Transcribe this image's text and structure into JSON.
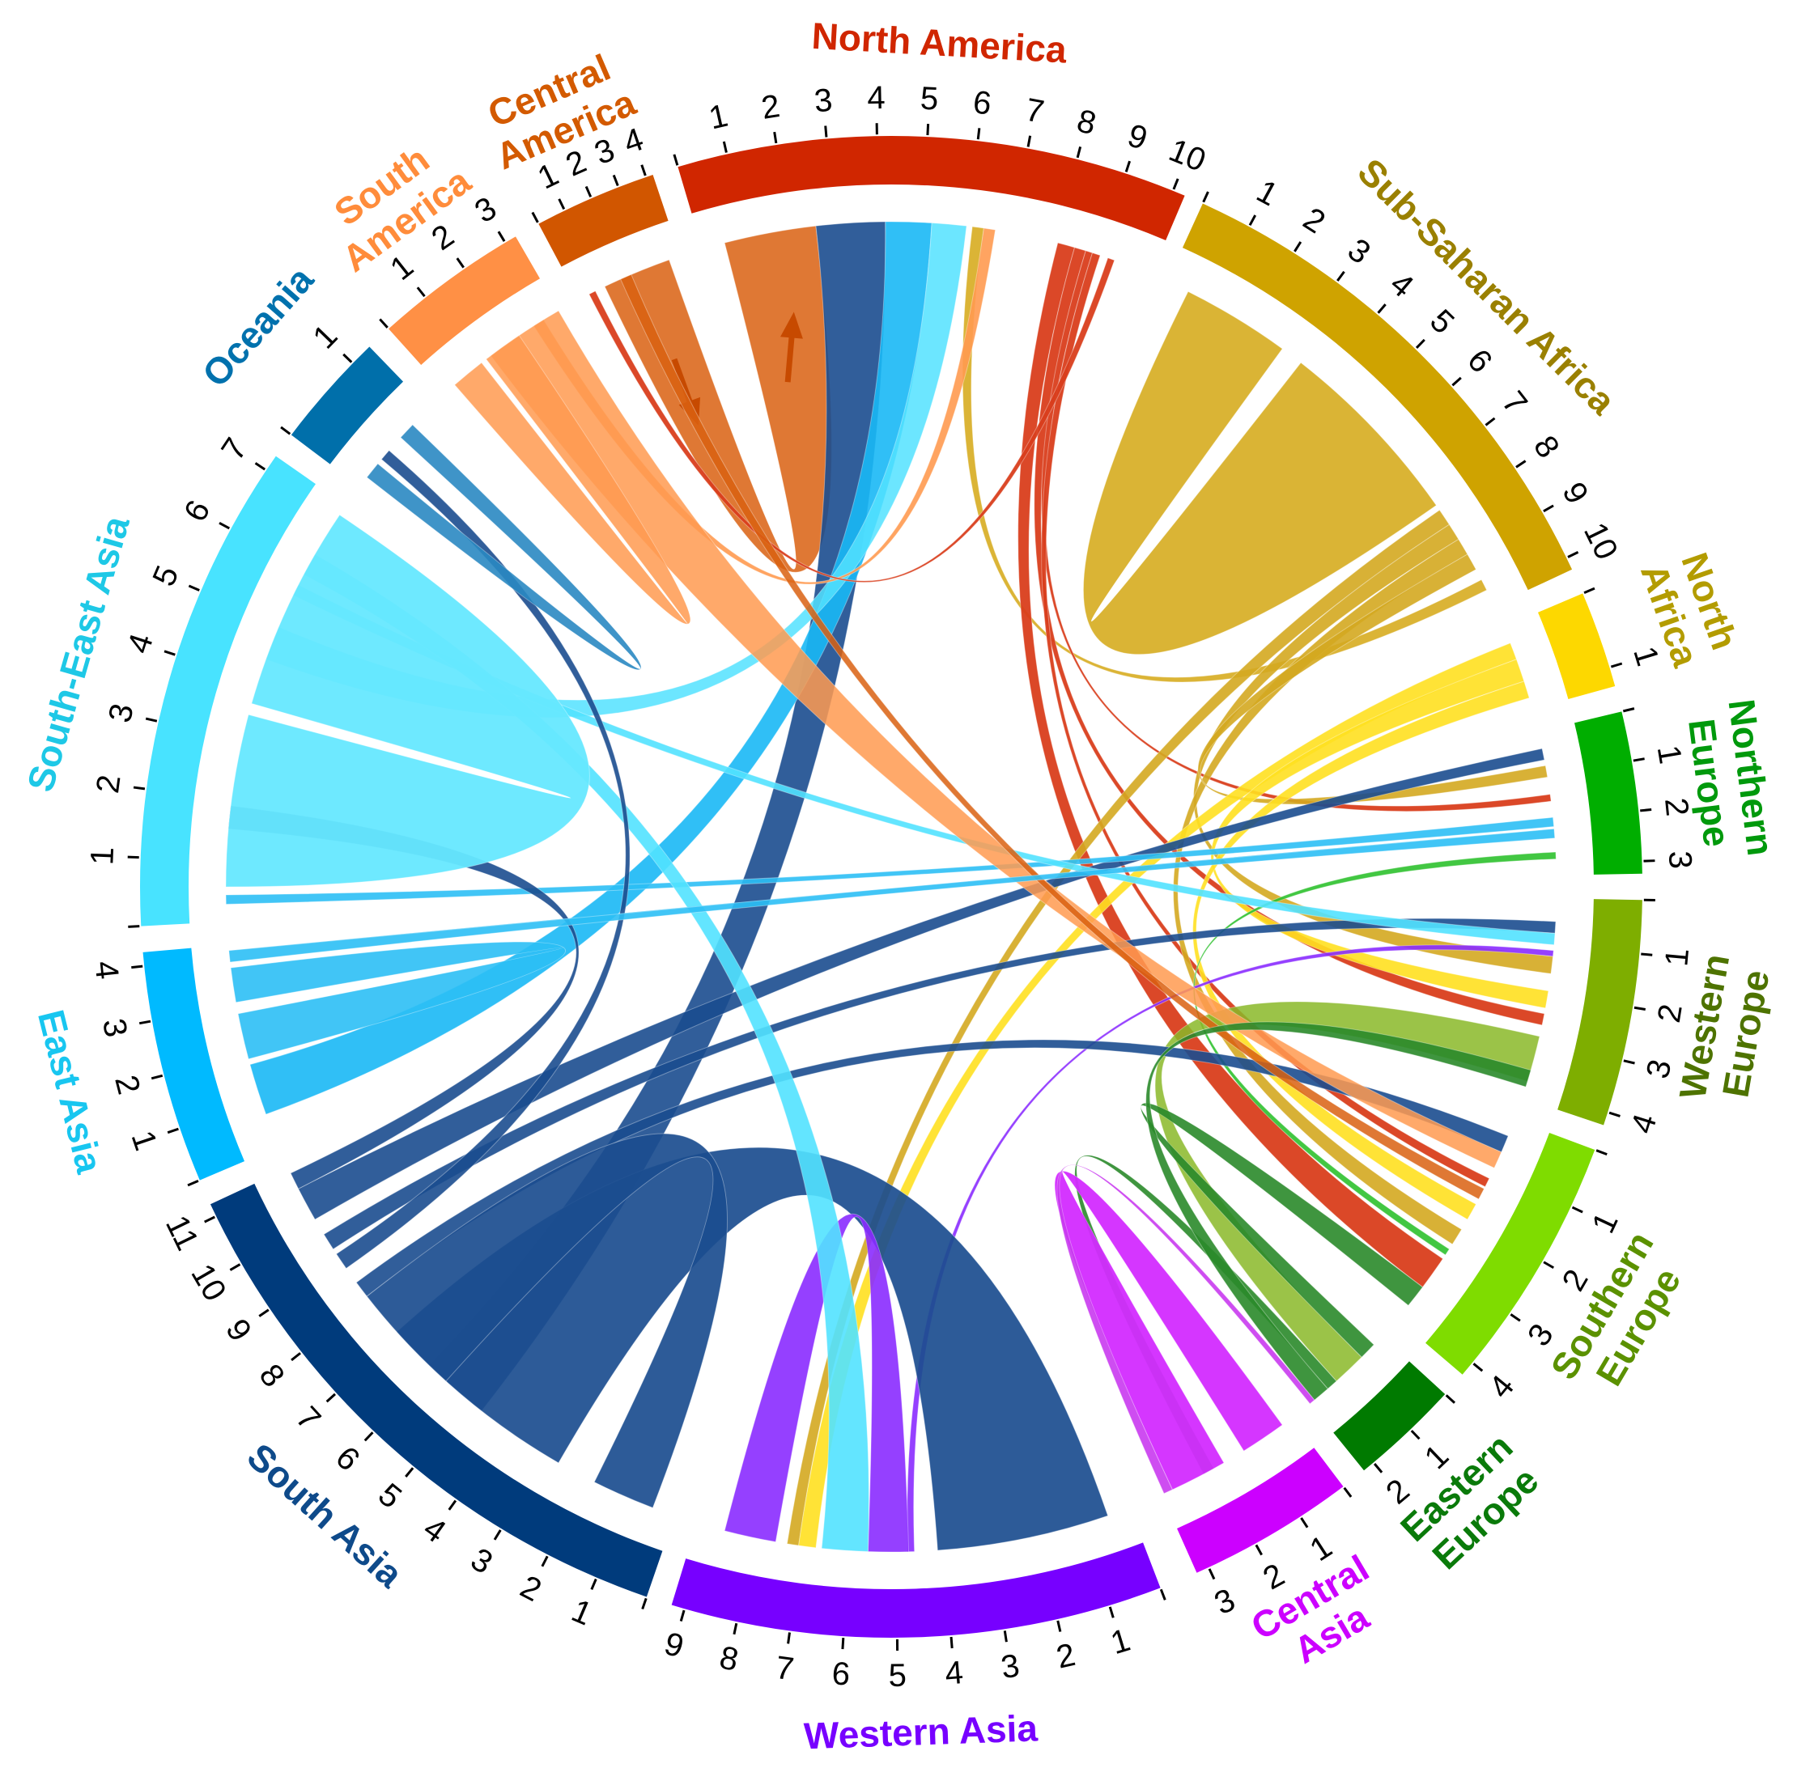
{
  "chart_data": {
    "type": "chord",
    "title": "",
    "center": [
      1101,
      1096
    ],
    "radii": {
      "outer": 928,
      "inner": 868,
      "chord": 822,
      "tick_label": 975,
      "sector_label": 1045
    },
    "sectors": [
      {
        "id": "NA",
        "name": "North America",
        "label_lines": [
          "North America"
        ],
        "color": "#D02600",
        "label_color": "#D02600",
        "start": 343.5,
        "end": 23.0,
        "ticks": 10
      },
      {
        "id": "SSA",
        "name": "Sub-Saharan Africa",
        "label_lines": [
          "Sub-Saharan Africa"
        ],
        "color": "#CFA300",
        "label_color": "#9A8000",
        "start": 24.5,
        "end": 65.0,
        "ticks": 10
      },
      {
        "id": "NAF",
        "name": "North Africa",
        "label_lines": [
          "North",
          "Africa"
        ],
        "color": "#FDD800",
        "label_color": "#B39C00",
        "start": 67.0,
        "end": 74.5,
        "ticks": 1
      },
      {
        "id": "NEU",
        "name": "Northern Europe",
        "label_lines": [
          "Northern",
          "Europe"
        ],
        "color": "#00AE00",
        "label_color": "#00990C",
        "start": 76.5,
        "end": 89.0,
        "ticks": 3
      },
      {
        "id": "WEU",
        "name": "Western Europe",
        "label_lines": [
          "Western",
          "Europe"
        ],
        "color": "#7EAE00",
        "label_color": "#4E7300",
        "start": 91.0,
        "end": 108.5,
        "ticks": 4
      },
      {
        "id": "SEU",
        "name": "Southern Europe",
        "label_lines": [
          "Southern",
          "Europe"
        ],
        "color": "#7FDC00",
        "label_color": "#5B9100",
        "start": 110.5,
        "end": 130.5,
        "ticks": 4
      },
      {
        "id": "EEU",
        "name": "Eastern Europe",
        "label_lines": [
          "Eastern",
          "Europe"
        ],
        "color": "#007A00",
        "label_color": "#0A7A0A",
        "start": 132.5,
        "end": 141.0,
        "ticks": 2
      },
      {
        "id": "CAS",
        "name": "Central Asia",
        "label_lines": [
          "Central",
          "Asia"
        ],
        "color": "#CC00FF",
        "label_color": "#CC00FF",
        "start": 143.0,
        "end": 156.0,
        "ticks": 3
      },
      {
        "id": "WAS",
        "name": "Western Asia",
        "label_lines": [
          "Western Asia"
        ],
        "color": "#7700FF",
        "label_color": "#7700FF",
        "start": 159.0,
        "end": 197.0,
        "ticks": 9
      },
      {
        "id": "SAS",
        "name": "South Asia",
        "label_lines": [
          "South Asia"
        ],
        "color": "#003B7C",
        "label_color": "#0E4A8A",
        "start": 199.0,
        "end": 245.0,
        "ticks": 11
      },
      {
        "id": "EAS",
        "name": "East Asia",
        "label_lines": [
          "East Asia"
        ],
        "color": "#00BAFF",
        "label_color": "#18C6F0",
        "start": 247.0,
        "end": 265.0,
        "ticks": 4
      },
      {
        "id": "SEA",
        "name": "South-East Asia",
        "label_lines": [
          "South-East Asia"
        ],
        "color": "#48E3FF",
        "label_color": "#1EC8E6",
        "start": 267.0,
        "end": 305.0,
        "ticks": 7
      },
      {
        "id": "OCE",
        "name": "Oceania",
        "label_lines": [
          "Oceania"
        ],
        "color": "#006FAA",
        "label_color": "#0071AD",
        "start": 307.0,
        "end": 316.0,
        "ticks": 1
      },
      {
        "id": "SAM",
        "name": "South America",
        "label_lines": [
          "South",
          "America"
        ],
        "color": "#FF9045",
        "label_color": "#FF8C3B",
        "start": 318.0,
        "end": 330.0,
        "ticks": 3
      },
      {
        "id": "CAM",
        "name": "Central America",
        "label_lines": [
          "Central",
          "America"
        ],
        "color": "#D15600",
        "label_color": "#D35A00",
        "start": 332.0,
        "end": 341.5,
        "ticks": 4
      }
    ],
    "links": [
      {
        "from": "CAM",
        "a0": 334.5,
        "a1": 340.5,
        "to": "NA",
        "b0": 345.5,
        "b1": 353.5,
        "color": "#D96010",
        "opacity": 0.85,
        "arrows": true
      },
      {
        "from": "NA",
        "a0": 353.5,
        "a1": 359.5,
        "to": "SAS",
        "b0": 218.0,
        "b1": 224.0,
        "color": "#1B4D8F",
        "opacity": 0.9
      },
      {
        "from": "NA",
        "a0": 359.5,
        "a1": 3.5,
        "to": "EAS",
        "b0": 250.0,
        "b1": 254.5,
        "color": "#1AB8F5",
        "opacity": 0.9
      },
      {
        "from": "NA",
        "a0": 3.5,
        "a1": 6.5,
        "to": "SEA",
        "b0": 290.0,
        "b1": 293.0,
        "color": "#52E2FF",
        "opacity": 0.85
      },
      {
        "from": "NA",
        "a0": 7.0,
        "a1": 8.0,
        "to": "SSA",
        "b0": 62.5,
        "b1": 63.5,
        "color": "#D7AC20",
        "opacity": 0.9
      },
      {
        "from": "NA",
        "a0": 8.0,
        "a1": 9.0,
        "to": "SAM",
        "b0": 327.5,
        "b1": 328.5,
        "color": "#FF9A50",
        "opacity": 0.9
      },
      {
        "from": "NA",
        "a0": 14.5,
        "a1": 16.0,
        "to": "SEU",
        "b0": 124.0,
        "b1": 127.0,
        "color": "#D93E1C",
        "opacity": 0.95
      },
      {
        "from": "NA",
        "a0": 16.0,
        "a1": 17.0,
        "to": "WEU",
        "b0": 101.0,
        "b1": 102.0,
        "color": "#D93E1C",
        "opacity": 0.95
      },
      {
        "from": "NA",
        "a0": 17.0,
        "a1": 17.6,
        "to": "NEU",
        "b0": 82.0,
        "b1": 82.6,
        "color": "#D93E1C",
        "opacity": 0.95
      },
      {
        "from": "NA",
        "a0": 17.6,
        "a1": 18.3,
        "to": "SEU",
        "b0": 116.0,
        "b1": 116.8,
        "color": "#D93E1C",
        "opacity": 0.95
      },
      {
        "from": "NA",
        "a0": 19.0,
        "a1": 19.6,
        "to": "CAM",
        "b0": 333.0,
        "b1": 333.6,
        "color": "#D93E1C",
        "opacity": 0.95
      },
      {
        "from": "SSA",
        "a0": 26.5,
        "a1": 36.0,
        "to": "SSA",
        "b0": 38.0,
        "b1": 55.0,
        "color": "#D8B02A",
        "opacity": 0.95
      },
      {
        "from": "SSA",
        "a0": 55.5,
        "a1": 57.0,
        "to": "WAS",
        "b0": 188.0,
        "b1": 189.0,
        "color": "#D4A820",
        "opacity": 0.9
      },
      {
        "from": "SSA",
        "a0": 57.0,
        "a1": 58.5,
        "to": "WEU",
        "b0": 96.0,
        "b1": 97.5,
        "color": "#D4A820",
        "opacity": 0.9
      },
      {
        "from": "SSA",
        "a0": 58.5,
        "a1": 60.0,
        "to": "SEU",
        "b0": 121.0,
        "b1": 122.5,
        "color": "#D4A820",
        "opacity": 0.9
      },
      {
        "from": "SSA",
        "a0": 60.0,
        "a1": 61.5,
        "to": "NEU",
        "b0": 79.5,
        "b1": 80.5,
        "color": "#D4A820",
        "opacity": 0.9
      },
      {
        "from": "NAF",
        "a0": 68.5,
        "a1": 70.0,
        "to": "WAS",
        "b0": 186.5,
        "b1": 188.0,
        "color": "#FFE020",
        "opacity": 0.9
      },
      {
        "from": "NAF",
        "a0": 70.0,
        "a1": 72.0,
        "to": "WEU",
        "b0": 99.0,
        "b1": 100.5,
        "color": "#FFE020",
        "opacity": 0.9
      },
      {
        "from": "NAF",
        "a0": 72.0,
        "a1": 73.5,
        "to": "SEU",
        "b0": 118.5,
        "b1": 120.0,
        "color": "#FFE020",
        "opacity": 0.9
      },
      {
        "from": "NEU",
        "a0": 78.0,
        "a1": 79.0,
        "to": "SAS",
        "b0": 240.0,
        "b1": 243.0,
        "color": "#1B4D8F",
        "opacity": 0.9
      },
      {
        "from": "NEU",
        "a0": 84.0,
        "a1": 84.8,
        "to": "SEA",
        "b0": 268.5,
        "b1": 269.3,
        "color": "#2CBFF5",
        "opacity": 0.9
      },
      {
        "from": "NEU",
        "a0": 87.0,
        "a1": 87.6,
        "to": "SEU",
        "b0": 123.0,
        "b1": 123.6,
        "color": "#2EC12E",
        "opacity": 0.9
      },
      {
        "from": "WEU",
        "a0": 93.0,
        "a1": 94.0,
        "to": "SAS",
        "b0": 237.0,
        "b1": 238.5,
        "color": "#1B4D8F",
        "opacity": 0.9
      },
      {
        "from": "WEU",
        "a0": 94.0,
        "a1": 95.0,
        "to": "SEA",
        "b0": 296.0,
        "b1": 297.0,
        "color": "#52E2FF",
        "opacity": 0.9
      },
      {
        "from": "WEU",
        "a0": 95.5,
        "a1": 96.0,
        "to": "WAS",
        "b0": 178.0,
        "b1": 178.6,
        "color": "#8A2BFF",
        "opacity": 0.9
      },
      {
        "from": "WEU",
        "a0": 103.0,
        "a1": 107.0,
        "to": "EEU",
        "b0": 135.0,
        "b1": 138.0,
        "color": "#8AB828",
        "opacity": 0.85
      },
      {
        "from": "SEU",
        "a0": 112.0,
        "a1": 113.5,
        "to": "SAS",
        "b0": 232.0,
        "b1": 233.5,
        "color": "#1B4D8F",
        "opacity": 0.9
      },
      {
        "from": "SEU",
        "a0": 113.5,
        "a1": 115.0,
        "to": "SAM",
        "b0": 323.0,
        "b1": 330.0,
        "color": "#FF9A50",
        "opacity": 0.85
      },
      {
        "from": "SEU",
        "a0": 117.0,
        "a1": 118.0,
        "to": "CAM",
        "b0": 336.0,
        "b1": 337.0,
        "color": "#D96010",
        "opacity": 0.85
      },
      {
        "from": "EEU",
        "a0": 133.5,
        "a1": 135.0,
        "to": "SEU",
        "b0": 127.0,
        "b1": 129.0,
        "color": "#2A8A2A",
        "opacity": 0.9
      },
      {
        "from": "EEU",
        "a0": 138.0,
        "a1": 139.0,
        "to": "CAS",
        "b0": 151.0,
        "b1": 152.0,
        "color": "#2A8A2A",
        "opacity": 0.9
      },
      {
        "from": "EEU",
        "a0": 139.0,
        "a1": 140.5,
        "to": "WEU",
        "b0": 106.0,
        "b1": 107.5,
        "color": "#2A8A2A",
        "opacity": 0.9
      },
      {
        "from": "CAS",
        "a0": 144.0,
        "a1": 148.0,
        "to": "CAS",
        "b0": 150.0,
        "b1": 155.0,
        "color": "#D32BFF",
        "opacity": 0.95
      },
      {
        "from": "CAS",
        "a0": 155.0,
        "a1": 155.8,
        "to": "EEU",
        "b0": 140.5,
        "b1": 141.0,
        "color": "#C93AF0",
        "opacity": 0.9
      },
      {
        "from": "WAS",
        "a0": 161.0,
        "a1": 176.0,
        "to": "SAS",
        "b0": 210.0,
        "b1": 228.0,
        "color": "#1B4D8F",
        "opacity": 0.92
      },
      {
        "from": "WAS",
        "a0": 178.5,
        "a1": 182.0,
        "to": "WAS",
        "b0": 190.0,
        "b1": 194.5,
        "color": "#8A2BFF",
        "opacity": 0.9
      },
      {
        "from": "WAS",
        "a0": 182.0,
        "a1": 186.0,
        "to": "SEA",
        "b0": 298.0,
        "b1": 300.0,
        "color": "#52E2FF",
        "opacity": 0.9
      },
      {
        "from": "SAS",
        "a0": 201.0,
        "a1": 206.5,
        "to": "SAS",
        "b0": 222.0,
        "b1": 232.0,
        "color": "#1B4D8F",
        "opacity": 0.92
      },
      {
        "from": "SAS",
        "a0": 243.0,
        "a1": 244.5,
        "to": "SEA",
        "b0": 275.0,
        "b1": 277.0,
        "color": "#1B4D8F",
        "opacity": 0.9
      },
      {
        "from": "SAS",
        "a0": 235.0,
        "a1": 236.5,
        "to": "OCE",
        "b0": 310.0,
        "b1": 311.0,
        "color": "#1B4D8F",
        "opacity": 0.9
      },
      {
        "from": "EAS",
        "a0": 255.0,
        "a1": 259.0,
        "to": "EAS",
        "b0": 260.0,
        "b1": 263.0,
        "color": "#2CBFF5",
        "opacity": 0.9
      },
      {
        "from": "EAS",
        "a0": 263.5,
        "a1": 264.5,
        "to": "NEU",
        "b0": 85.0,
        "b1": 85.8,
        "color": "#2CBFF5",
        "opacity": 0.9
      },
      {
        "from": "SEA",
        "a0": 270.0,
        "a1": 285.0,
        "to": "SEA",
        "b0": 286.0,
        "b1": 304.0,
        "color": "#66E8FF",
        "opacity": 0.95
      },
      {
        "from": "OCE",
        "a0": 308.0,
        "a1": 309.5,
        "to": "OCE",
        "b0": 312.5,
        "b1": 314.0,
        "color": "#2A88C2",
        "opacity": 0.9
      },
      {
        "from": "SAM",
        "a0": 319.0,
        "a1": 322.0,
        "to": "SAM",
        "b0": 322.5,
        "b1": 326.0,
        "color": "#FF9A50",
        "opacity": 0.85
      }
    ]
  }
}
